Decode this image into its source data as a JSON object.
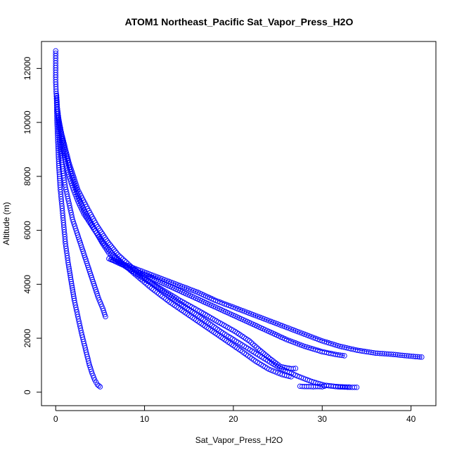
{
  "chart_data": {
    "type": "scatter",
    "title": "ATOM1 Northeast_Pacific Sat_Vapor_Press_H2O",
    "xlabel": "Sat_Vapor_Press_H2O",
    "ylabel": "Altitude (m)",
    "xlim": [
      -1.6,
      42.8
    ],
    "ylim": [
      -500,
      13000
    ],
    "xticks": [
      0,
      10,
      20,
      30,
      40
    ],
    "yticks": [
      0,
      2000,
      4000,
      6000,
      8000,
      10000,
      12000
    ],
    "grid": false,
    "color": "#0000ff",
    "marker": "open-circle",
    "profiles": [
      {
        "points": [
          [
            0.0,
            12650
          ],
          [
            0.0,
            12200
          ],
          [
            0.0,
            11500
          ],
          [
            0.1,
            10800
          ],
          [
            0.15,
            10000
          ],
          [
            0.25,
            9200
          ],
          [
            0.35,
            8400
          ],
          [
            0.5,
            7600
          ],
          [
            0.7,
            6900
          ],
          [
            0.9,
            6200
          ],
          [
            1.1,
            5500
          ],
          [
            1.4,
            4800
          ],
          [
            1.75,
            4100
          ],
          [
            2.1,
            3400
          ],
          [
            2.5,
            2800
          ],
          [
            2.9,
            2200
          ],
          [
            3.2,
            1800
          ],
          [
            3.5,
            1400
          ],
          [
            3.8,
            1000
          ],
          [
            4.1,
            700
          ],
          [
            4.4,
            450
          ],
          [
            4.7,
            280
          ],
          [
            5.0,
            200
          ]
        ]
      },
      {
        "points": [
          [
            0.1,
            11000
          ],
          [
            0.3,
            10000
          ],
          [
            0.5,
            9000
          ],
          [
            0.8,
            8200
          ],
          [
            1.1,
            7600
          ],
          [
            1.5,
            7000
          ],
          [
            1.9,
            6400
          ],
          [
            2.4,
            5900
          ],
          [
            3.0,
            5300
          ],
          [
            3.6,
            4700
          ],
          [
            4.2,
            4100
          ],
          [
            4.8,
            3500
          ],
          [
            5.3,
            3100
          ],
          [
            5.6,
            2800
          ]
        ]
      },
      {
        "points": [
          [
            0.2,
            10500
          ],
          [
            0.6,
            9500
          ],
          [
            1.0,
            8700
          ],
          [
            1.5,
            8000
          ],
          [
            2.0,
            7500
          ],
          [
            2.6,
            7000
          ],
          [
            3.2,
            6600
          ],
          [
            3.9,
            6250
          ],
          [
            4.6,
            5900
          ],
          [
            5.3,
            5500
          ],
          [
            6.0,
            5150
          ],
          [
            7.2,
            4800
          ],
          [
            8.6,
            4500
          ],
          [
            10.2,
            4150
          ],
          [
            12.0,
            3800
          ],
          [
            14.0,
            3400
          ],
          [
            16.2,
            3000
          ],
          [
            18.3,
            2600
          ],
          [
            20.2,
            2250
          ],
          [
            21.8,
            1900
          ],
          [
            23.0,
            1550
          ],
          [
            24.1,
            1250
          ],
          [
            25.3,
            950
          ],
          [
            26.5,
            870
          ],
          [
            27.0,
            880
          ]
        ]
      },
      {
        "points": [
          [
            0.3,
            10200
          ],
          [
            1.0,
            9000
          ],
          [
            1.8,
            8000
          ],
          [
            2.6,
            7200
          ],
          [
            3.4,
            6600
          ],
          [
            4.3,
            6050
          ],
          [
            5.2,
            5600
          ],
          [
            6.3,
            5150
          ],
          [
            7.6,
            4750
          ],
          [
            9.0,
            4350
          ],
          [
            10.8,
            3850
          ],
          [
            12.8,
            3350
          ],
          [
            14.8,
            2900
          ],
          [
            16.8,
            2450
          ],
          [
            18.8,
            2000
          ],
          [
            20.8,
            1550
          ],
          [
            22.5,
            1150
          ],
          [
            24.0,
            850
          ],
          [
            25.5,
            650
          ],
          [
            26.5,
            570
          ]
        ]
      },
      {
        "points": [
          [
            0.5,
            9800
          ],
          [
            1.5,
            8500
          ],
          [
            2.5,
            7500
          ],
          [
            3.6,
            6800
          ],
          [
            4.6,
            6200
          ],
          [
            5.8,
            5600
          ],
          [
            7.0,
            5100
          ],
          [
            8.5,
            4650
          ],
          [
            10.2,
            4200
          ],
          [
            12.2,
            3700
          ],
          [
            14.4,
            3200
          ],
          [
            16.6,
            2700
          ],
          [
            18.8,
            2200
          ],
          [
            21.0,
            1750
          ],
          [
            23.2,
            1300
          ],
          [
            25.2,
            900
          ],
          [
            27.2,
            600
          ],
          [
            28.8,
            400
          ],
          [
            30.2,
            260
          ],
          [
            31.8,
            200
          ],
          [
            33.4,
            180
          ],
          [
            33.9,
            180
          ]
        ]
      },
      {
        "points": [
          [
            6.0,
            4950
          ],
          [
            8.0,
            4700
          ],
          [
            10.0,
            4450
          ],
          [
            12.0,
            4200
          ],
          [
            14.0,
            3950
          ],
          [
            16.0,
            3700
          ],
          [
            18.0,
            3400
          ],
          [
            20.0,
            3150
          ],
          [
            22.0,
            2900
          ],
          [
            24.0,
            2650
          ],
          [
            26.0,
            2400
          ],
          [
            28.0,
            2150
          ],
          [
            30.0,
            1900
          ],
          [
            32.0,
            1700
          ],
          [
            34.0,
            1550
          ],
          [
            36.0,
            1450
          ],
          [
            38.0,
            1400
          ],
          [
            39.5,
            1350
          ],
          [
            40.5,
            1320
          ],
          [
            41.2,
            1300
          ]
        ]
      },
      {
        "points": [
          [
            6.0,
            4950
          ],
          [
            8.0,
            4650
          ],
          [
            10.0,
            4350
          ],
          [
            12.0,
            4050
          ],
          [
            14.0,
            3750
          ],
          [
            16.0,
            3450
          ],
          [
            18.0,
            3150
          ],
          [
            20.0,
            2850
          ],
          [
            22.0,
            2550
          ],
          [
            24.0,
            2250
          ],
          [
            26.0,
            1950
          ],
          [
            28.0,
            1700
          ],
          [
            30.0,
            1500
          ],
          [
            31.5,
            1400
          ],
          [
            32.5,
            1350
          ]
        ]
      },
      {
        "points": [
          [
            27.5,
            220
          ],
          [
            28.0,
            210
          ],
          [
            28.5,
            210
          ],
          [
            29.0,
            200
          ],
          [
            29.5,
            210
          ],
          [
            30.0,
            200
          ],
          [
            30.5,
            250
          ],
          [
            31.0,
            230
          ],
          [
            31.5,
            210
          ],
          [
            32.0,
            200
          ],
          [
            32.5,
            190
          ],
          [
            33.0,
            190
          ]
        ]
      }
    ],
    "lines": [
      {
        "points": [
          [
            6.0,
            4950
          ],
          [
            10.0,
            4450
          ],
          [
            16.0,
            3700
          ],
          [
            22.0,
            2900
          ],
          [
            28.0,
            2150
          ],
          [
            32.0,
            1700
          ],
          [
            36.0,
            1450
          ],
          [
            41.2,
            1300
          ]
        ]
      },
      {
        "points": [
          [
            6.0,
            4950
          ],
          [
            12.0,
            4050
          ],
          [
            18.0,
            3150
          ],
          [
            24.0,
            2250
          ],
          [
            28.0,
            1700
          ],
          [
            32.5,
            1350
          ]
        ]
      }
    ]
  }
}
